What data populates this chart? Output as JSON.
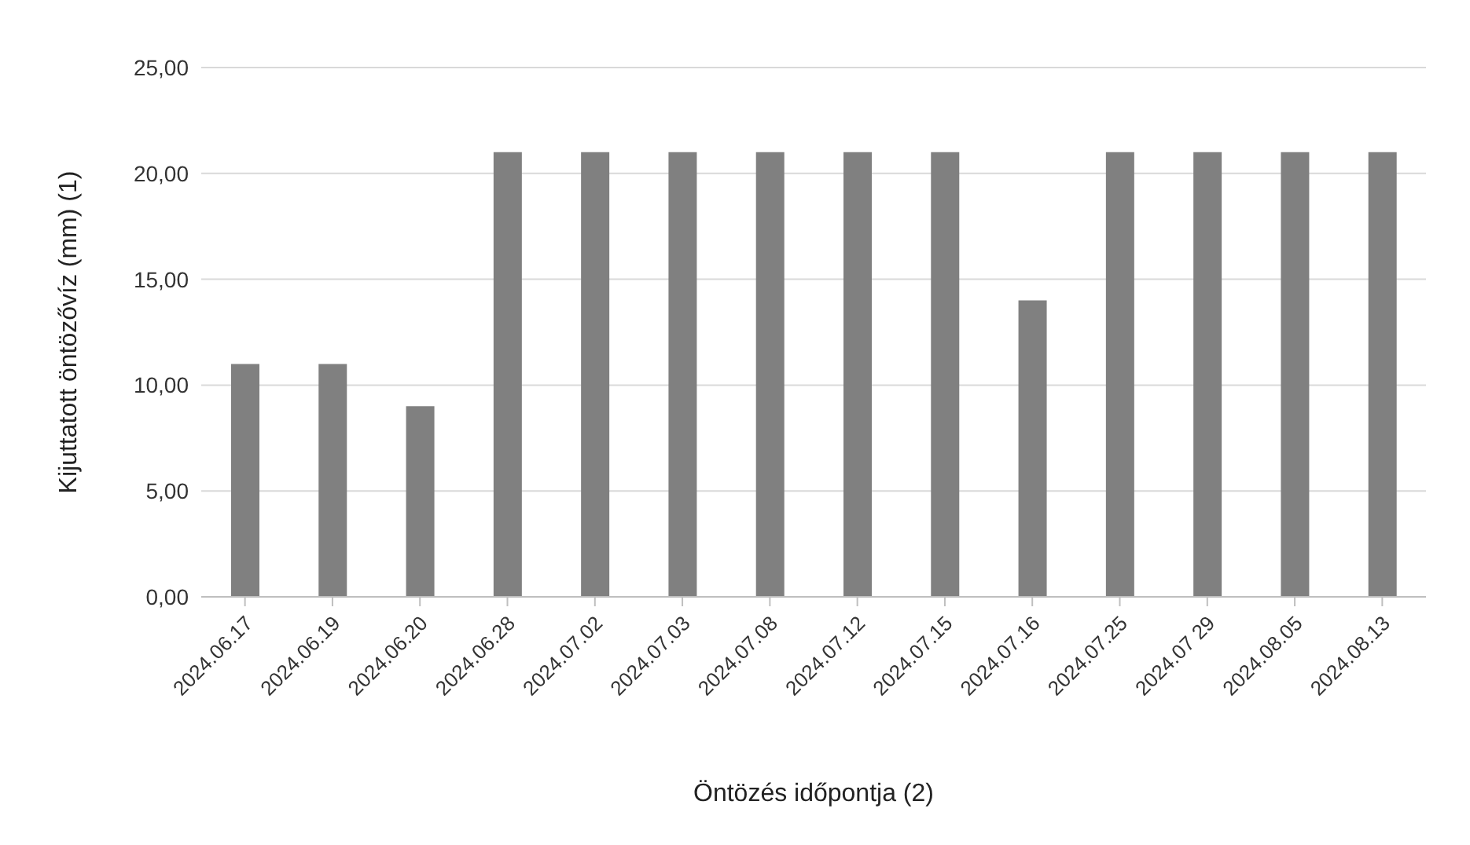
{
  "chart_data": {
    "type": "bar",
    "xlabel": "Öntözés időpontja (2)",
    "ylabel": "Kijuttatott öntözővíz (mm) (1)",
    "categories": [
      "2024.06.17",
      "2024.06.19",
      "2024.06.20",
      "2024.06.28",
      "2024.07.02",
      "2024.07.03",
      "2024.07.08",
      "2024.07.12",
      "2024.07.15",
      "2024.07.16",
      "2024.07.25",
      "2024.07 29",
      "2024.08.05",
      "2024.08.13"
    ],
    "values": [
      11,
      11,
      9,
      21,
      21,
      21,
      21,
      21,
      21,
      14,
      21,
      21,
      21,
      21
    ],
    "color": "#808080",
    "ylim": [
      0,
      25
    ],
    "yticks": [
      {
        "value": 0,
        "label": "0,00"
      },
      {
        "value": 5,
        "label": "5,00"
      },
      {
        "value": 10,
        "label": "10,00"
      },
      {
        "value": 15,
        "label": "15,00"
      },
      {
        "value": 20,
        "label": "20,00"
      },
      {
        "value": 25,
        "label": "25,00"
      }
    ],
    "grid": "y",
    "legend": false
  }
}
